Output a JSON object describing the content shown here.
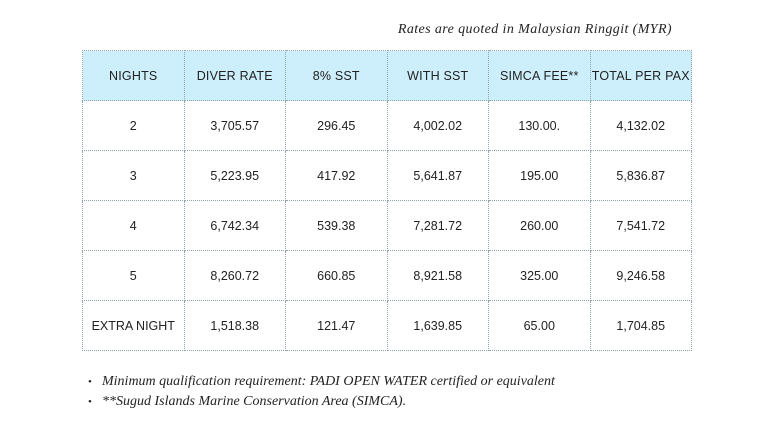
{
  "note_top": "Rates are quoted in Malaysian Ringgit (MYR)",
  "table": {
    "headers": [
      "NIGHTS",
      "DIVER RATE",
      "8% SST",
      "WITH SST",
      "SIMCA FEE**",
      "TOTAL PER PAX"
    ],
    "rows": [
      [
        "2",
        "3,705.57",
        "296.45",
        "4,002.02",
        "130.00.",
        "4,132.02"
      ],
      [
        "3",
        "5,223.95",
        "417.92",
        "5,641.87",
        "195.00",
        "5,836.87"
      ],
      [
        "4",
        "6,742.34",
        "539.38",
        "7,281.72",
        "260.00",
        "7,541.72"
      ],
      [
        "5",
        "8,260.72",
        "660.85",
        "8,921.58",
        "325.00",
        "9,246.58"
      ],
      [
        "EXTRA NIGHT",
        "1,518.38",
        "121.47",
        "1,639.85",
        "65.00",
        "1,704.85"
      ]
    ]
  },
  "notes": [
    {
      "bullet": "•",
      "text": "Minimum qualification requirement: PADI OPEN WATER certified or equivalent"
    },
    {
      "bullet": "•",
      "text": "**Sugud Islands Marine Conservation Area (SIMCA)."
    }
  ],
  "colors": {
    "header_bg": "#cdeffb",
    "border": "#8fa3a8",
    "text": "#222222"
  }
}
